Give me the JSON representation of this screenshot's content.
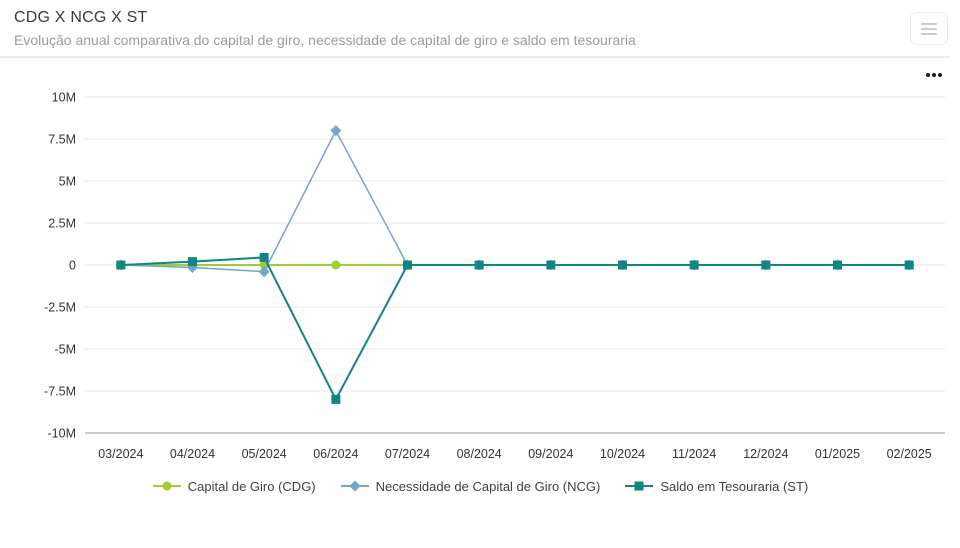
{
  "header": {
    "title": "CDG X NCG X ST",
    "subtitle": "Evolução anual comparativa do capital de giro, necessidade de capital de giro e saldo em tesouraria"
  },
  "icons": {
    "menu": "hamburger-icon",
    "more": "ellipsis-icon"
  },
  "colors": {
    "cdg": "#a2cd32",
    "ncg": "#74a6c6",
    "st": "#118580",
    "gridline": "#e6e6e6",
    "axis_line": "#9a9a9a",
    "axis_text": "#333333"
  },
  "chart_data": {
    "type": "line",
    "title": "CDG X NCG X ST",
    "categories": [
      "03/2024",
      "04/2024",
      "05/2024",
      "06/2024",
      "07/2024",
      "08/2024",
      "09/2024",
      "10/2024",
      "11/2024",
      "12/2024",
      "01/2025",
      "02/2025"
    ],
    "series": [
      {
        "name": "Capital de Giro (CDG)",
        "color": "#a2cd32",
        "marker": "circle",
        "values": [
          0,
          0,
          0,
          0,
          0,
          0,
          0,
          0,
          0,
          0,
          0,
          0
        ]
      },
      {
        "name": "Necessidade de Capital de Giro (NCG)",
        "color": "#74a6c6",
        "marker": "diamond",
        "values": [
          0,
          -150000,
          -400000,
          8000000,
          0,
          0,
          0,
          0,
          0,
          0,
          0,
          0
        ]
      },
      {
        "name": "Saldo em Tesouraria (ST)",
        "color": "#118580",
        "marker": "square",
        "values": [
          0,
          200000,
          450000,
          -8000000,
          0,
          0,
          0,
          0,
          0,
          0,
          0,
          0
        ]
      }
    ],
    "ylim": [
      -10000000,
      10000000
    ],
    "ytick_interval": 2500000,
    "ytick_labels_top_to_bottom": [
      "10M",
      "7.5M",
      "5M",
      "2.5M",
      "0",
      "-2.5M",
      "-5M",
      "-7.5M",
      "-10M"
    ],
    "grid": true,
    "legend_position": "bottom"
  }
}
